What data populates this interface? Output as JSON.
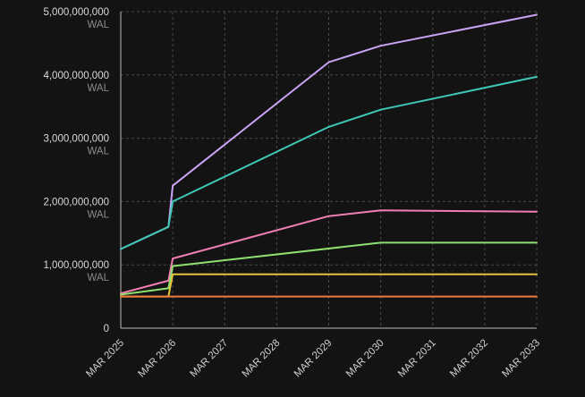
{
  "chart_data": {
    "type": "line",
    "title": "",
    "xlabel": "",
    "ylabel": "",
    "y_unit": "WAL",
    "ylim": [
      0,
      5000000000
    ],
    "xlim": [
      "2025-03",
      "2033-03"
    ],
    "grid": true,
    "y_ticks": [
      {
        "value": 0,
        "label": "0",
        "unit": ""
      },
      {
        "value": 1000000000,
        "label": "1,000,000,000",
        "unit": "WAL"
      },
      {
        "value": 2000000000,
        "label": "2,000,000,000",
        "unit": "WAL"
      },
      {
        "value": 3000000000,
        "label": "3,000,000,000",
        "unit": "WAL"
      },
      {
        "value": 4000000000,
        "label": "4,000,000,000",
        "unit": "WAL"
      },
      {
        "value": 5000000000,
        "label": "5,000,000,000",
        "unit": "WAL"
      }
    ],
    "x_ticks": [
      {
        "value": "2025-03",
        "label": "MAR 2025"
      },
      {
        "value": "2026-03",
        "label": "MAR 2026"
      },
      {
        "value": "2027-03",
        "label": "MAR 2027"
      },
      {
        "value": "2028-03",
        "label": "MAR 2028"
      },
      {
        "value": "2029-03",
        "label": "MAR 2029"
      },
      {
        "value": "2030-03",
        "label": "MAR 2030"
      },
      {
        "value": "2031-03",
        "label": "MAR 2031"
      },
      {
        "value": "2032-03",
        "label": "MAR 2032"
      },
      {
        "value": "2033-03",
        "label": "MAR 2033"
      }
    ],
    "series": [
      {
        "color": "#c9a3f5",
        "points": [
          [
            "2025-03",
            1250000000
          ],
          [
            "2026-02",
            1600000000
          ],
          [
            "2026-03",
            2250000000
          ],
          [
            "2029-03",
            4200000000
          ],
          [
            "2030-03",
            4460000000
          ],
          [
            "2033-03",
            4950000000
          ]
        ]
      },
      {
        "color": "#3ec7b4",
        "points": [
          [
            "2025-03",
            1250000000
          ],
          [
            "2026-02",
            1600000000
          ],
          [
            "2026-03",
            2000000000
          ],
          [
            "2029-03",
            3180000000
          ],
          [
            "2030-03",
            3450000000
          ],
          [
            "2033-03",
            3970000000
          ]
        ]
      },
      {
        "color": "#f07fb1",
        "points": [
          [
            "2025-03",
            550000000
          ],
          [
            "2026-02",
            750000000
          ],
          [
            "2026-03",
            1100000000
          ],
          [
            "2029-03",
            1770000000
          ],
          [
            "2030-03",
            1860000000
          ],
          [
            "2033-03",
            1840000000
          ]
        ]
      },
      {
        "color": "#8ee06f",
        "points": [
          [
            "2025-03",
            530000000
          ],
          [
            "2026-02",
            630000000
          ],
          [
            "2026-03",
            980000000
          ],
          [
            "2030-03",
            1350000000
          ],
          [
            "2033-03",
            1350000000
          ]
        ]
      },
      {
        "color": "#e5c33a",
        "points": [
          [
            "2025-03",
            500000000
          ],
          [
            "2026-02",
            500000000
          ],
          [
            "2026-03",
            850000000
          ],
          [
            "2033-03",
            850000000
          ]
        ]
      },
      {
        "color": "#ef7a3c",
        "points": [
          [
            "2025-03",
            500000000
          ],
          [
            "2033-03",
            500000000
          ]
        ]
      }
    ]
  }
}
